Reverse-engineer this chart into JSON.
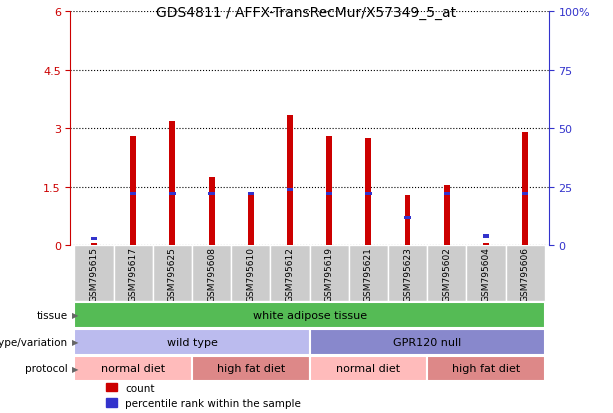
{
  "title": "GDS4811 / AFFX-TransRecMur/X57349_5_at",
  "samples": [
    "GSM795615",
    "GSM795617",
    "GSM795625",
    "GSM795608",
    "GSM795610",
    "GSM795612",
    "GSM795619",
    "GSM795621",
    "GSM795623",
    "GSM795602",
    "GSM795604",
    "GSM795606"
  ],
  "count_values": [
    0.07,
    2.8,
    3.2,
    1.75,
    1.3,
    3.35,
    2.8,
    2.75,
    1.3,
    1.55,
    0.07,
    2.9
  ],
  "percentile_values": [
    3,
    22,
    22,
    22,
    22,
    24,
    22,
    22,
    12,
    22,
    4,
    22
  ],
  "count_color": "#cc0000",
  "percentile_color": "#3333cc",
  "bar_width": 0.15,
  "ylim_left": [
    0,
    6
  ],
  "ylim_right": [
    0,
    100
  ],
  "yticks_left": [
    0,
    1.5,
    3.0,
    4.5,
    6.0
  ],
  "ytick_labels_left": [
    "0",
    "1.5",
    "3",
    "4.5",
    "6"
  ],
  "yticks_right": [
    0,
    25,
    50,
    75,
    100
  ],
  "ytick_labels_right": [
    "0",
    "25",
    "50",
    "75",
    "100%"
  ],
  "xticklabel_bg": "#cccccc",
  "tissue_text": "white adipose tissue",
  "tissue_color": "#55bb55",
  "tissue_label": "tissue",
  "genotype_label": "genotype/variation",
  "genotype_groups": [
    {
      "text": "wild type",
      "color": "#bbbbee",
      "start": 0,
      "end": 5
    },
    {
      "text": "GPR120 null",
      "color": "#8888cc",
      "start": 6,
      "end": 11
    }
  ],
  "protocol_groups": [
    {
      "text": "normal diet",
      "color": "#ffbbbb",
      "start": 0,
      "end": 2
    },
    {
      "text": "high fat diet",
      "color": "#dd8888",
      "start": 3,
      "end": 5
    },
    {
      "text": "normal diet",
      "color": "#ffbbbb",
      "start": 6,
      "end": 8
    },
    {
      "text": "high fat diet",
      "color": "#dd8888",
      "start": 9,
      "end": 11
    }
  ],
  "protocol_label": "protocol",
  "legend_count": "count",
  "legend_percentile": "percentile rank within the sample"
}
